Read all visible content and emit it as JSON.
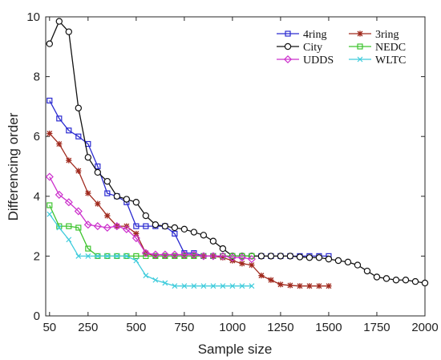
{
  "chart_data": {
    "type": "line",
    "title": "",
    "xlabel": "Sample size",
    "ylabel": "Differencing order",
    "xlim": [
      30,
      2000
    ],
    "ylim": [
      0,
      10
    ],
    "xticks": [
      50,
      250,
      500,
      750,
      1000,
      1250,
      1500,
      1750,
      2000
    ],
    "yticks": [
      0,
      2,
      4,
      6,
      8,
      10
    ],
    "grid": false,
    "legend": "top-right",
    "series": [
      {
        "name": "4ring",
        "color": "#2a2ad0",
        "marker": "square",
        "x": [
          50,
          100,
          150,
          200,
          250,
          300,
          350,
          400,
          450,
          500,
          550,
          600,
          650,
          700,
          750,
          800,
          850,
          900,
          950,
          1000,
          1050,
          1100,
          1150,
          1200,
          1250,
          1300,
          1350,
          1400,
          1450,
          1500
        ],
        "y": [
          7.2,
          6.6,
          6.2,
          6.0,
          5.75,
          5.0,
          4.1,
          4.0,
          3.8,
          3.0,
          3.0,
          3.0,
          3.0,
          2.75,
          2.1,
          2.1,
          2.0,
          2.0,
          2.0,
          2.0,
          2.0,
          2.0,
          2.0,
          2.0,
          2.0,
          2.0,
          2.0,
          2.0,
          2.0,
          2.0
        ]
      },
      {
        "name": "3ring",
        "color": "#a02a1e",
        "marker": "star",
        "x": [
          50,
          100,
          150,
          200,
          250,
          300,
          350,
          400,
          450,
          500,
          550,
          600,
          650,
          700,
          750,
          800,
          850,
          900,
          950,
          1000,
          1050,
          1100,
          1150,
          1200,
          1250,
          1300,
          1350,
          1400,
          1450,
          1500
        ],
        "y": [
          6.1,
          5.75,
          5.2,
          4.85,
          4.1,
          3.75,
          3.35,
          3.0,
          3.0,
          2.75,
          2.1,
          2.0,
          2.0,
          2.0,
          2.0,
          2.0,
          2.0,
          2.0,
          1.95,
          1.85,
          1.75,
          1.7,
          1.35,
          1.2,
          1.05,
          1.02,
          1.0,
          1.0,
          1.0,
          1.0
        ]
      },
      {
        "name": "City",
        "color": "#111111",
        "marker": "circle",
        "x": [
          50,
          100,
          150,
          200,
          250,
          300,
          350,
          400,
          450,
          500,
          550,
          600,
          650,
          700,
          750,
          800,
          850,
          900,
          950,
          1000,
          1050,
          1100,
          1150,
          1200,
          1250,
          1300,
          1350,
          1400,
          1450,
          1500,
          1550,
          1600,
          1650,
          1700,
          1750,
          1800,
          1850,
          1900,
          1950,
          2000
        ],
        "y": [
          9.1,
          9.85,
          9.5,
          6.95,
          5.3,
          4.8,
          4.5,
          4.0,
          3.9,
          3.8,
          3.35,
          3.05,
          3.0,
          2.95,
          2.9,
          2.8,
          2.7,
          2.5,
          2.25,
          2.0,
          2.0,
          2.0,
          2.0,
          2.0,
          2.0,
          2.0,
          1.97,
          1.95,
          1.95,
          1.9,
          1.85,
          1.8,
          1.7,
          1.5,
          1.3,
          1.25,
          1.2,
          1.2,
          1.15,
          1.1
        ]
      },
      {
        "name": "NEDC",
        "color": "#3ec42e",
        "marker": "square",
        "x": [
          50,
          100,
          150,
          200,
          250,
          300,
          350,
          400,
          450,
          500,
          550,
          600,
          650,
          700,
          750,
          800,
          850,
          900,
          950,
          1000,
          1050,
          1100
        ],
        "y": [
          3.7,
          3.0,
          3.0,
          2.95,
          2.25,
          2.0,
          2.0,
          2.0,
          2.0,
          2.0,
          2.0,
          2.0,
          2.0,
          2.0,
          2.0,
          2.0,
          2.0,
          2.0,
          2.0,
          2.0,
          2.0,
          2.0
        ]
      },
      {
        "name": "UDDS",
        "color": "#cc30cc",
        "marker": "diamond",
        "x": [
          50,
          100,
          150,
          200,
          250,
          300,
          350,
          400,
          450,
          500,
          550,
          600,
          650,
          700,
          750,
          800,
          850,
          900,
          950,
          1000,
          1050,
          1100
        ],
        "y": [
          4.65,
          4.05,
          3.8,
          3.5,
          3.05,
          3.0,
          2.95,
          3.0,
          2.9,
          2.6,
          2.1,
          2.05,
          2.05,
          2.05,
          2.05,
          2.05,
          2.0,
          2.0,
          2.0,
          1.95,
          1.95,
          1.9
        ]
      },
      {
        "name": "WLTC",
        "color": "#40ccdc",
        "marker": "x",
        "x": [
          50,
          100,
          150,
          200,
          250,
          300,
          350,
          400,
          450,
          500,
          550,
          600,
          650,
          700,
          750,
          800,
          850,
          900,
          950,
          1000,
          1050,
          1100
        ],
        "y": [
          3.4,
          2.95,
          2.55,
          2.0,
          2.0,
          2.0,
          2.0,
          2.0,
          2.0,
          1.85,
          1.35,
          1.2,
          1.1,
          1.0,
          1.0,
          1.0,
          1.0,
          1.0,
          1.0,
          1.0,
          1.0,
          1.0
        ]
      }
    ]
  }
}
